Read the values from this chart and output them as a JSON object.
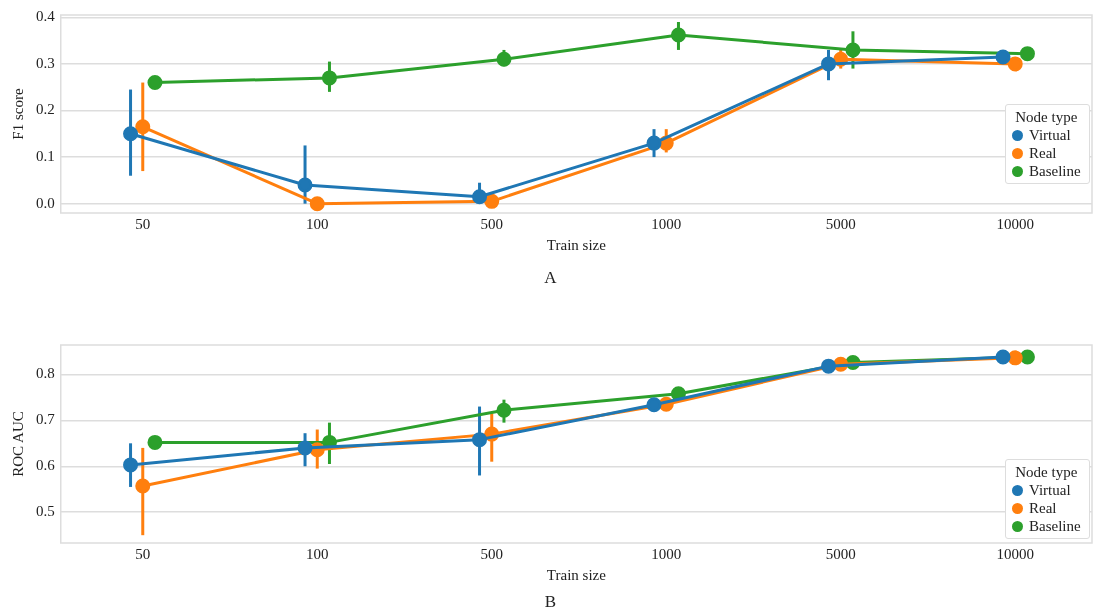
{
  "chart_data": [
    {
      "type": "line",
      "xlabel": "Train size",
      "ylabel": "F1 score",
      "categories": [
        "50",
        "100",
        "500",
        "1000",
        "5000",
        "10000"
      ],
      "ylim": [
        -0.02,
        0.405
      ],
      "yticks": [
        {
          "value": 0,
          "label": "0.0"
        },
        0.1,
        0.2,
        0.3,
        0.4
      ],
      "grid": "y",
      "legend": "right",
      "legend_title": "Node type",
      "marker": "circle",
      "annotations": [
        "A"
      ],
      "series": [
        {
          "name": "Virtual",
          "color": "#1f77b4",
          "values": [
            0.15,
            0.04,
            0.015,
            0.13,
            0.3,
            0.315
          ],
          "errors": [
            [
              0.06,
              0.245
            ],
            [
              0.0,
              0.125
            ],
            [
              0.0,
              0.045
            ],
            [
              0.1,
              0.16
            ],
            [
              0.265,
              0.33
            ],
            null
          ]
        },
        {
          "name": "Real",
          "color": "#ff7f0e",
          "values": [
            0.165,
            0.0,
            0.005,
            0.13,
            0.31,
            0.3
          ],
          "errors": [
            [
              0.07,
              0.26
            ],
            null,
            null,
            [
              0.11,
              0.16
            ],
            [
              0.29,
              0.33
            ],
            null
          ]
        },
        {
          "name": "Baseline",
          "color": "#2ca02c",
          "values": [
            0.26,
            0.27,
            0.31,
            0.362,
            0.33,
            0.322
          ],
          "errors": [
            [
              0.25,
              0.27
            ],
            [
              0.24,
              0.305
            ],
            [
              0.295,
              0.33
            ],
            [
              0.33,
              0.39
            ],
            [
              0.29,
              0.37
            ],
            [
              0.31,
              0.335
            ]
          ]
        }
      ]
    },
    {
      "type": "line",
      "xlabel": "Train size",
      "ylabel": "ROC AUC",
      "categories": [
        "50",
        "100",
        "500",
        "1000",
        "5000",
        "10000"
      ],
      "ylim": [
        0.433,
        0.864
      ],
      "yticks": [
        0.5,
        0.6,
        0.7,
        0.8
      ],
      "grid": "y",
      "legend": "bottom right",
      "legend_title": "Node type",
      "marker": "circle",
      "annotations": [
        "B"
      ],
      "series": [
        {
          "name": "Virtual",
          "color": "#1f77b4",
          "values": [
            0.603,
            0.64,
            0.658,
            0.734,
            0.818,
            0.838
          ],
          "errors": [
            [
              0.555,
              0.65
            ],
            [
              0.6,
              0.672
            ],
            [
              0.58,
              0.73
            ],
            null,
            null,
            null
          ]
        },
        {
          "name": "Real",
          "color": "#ff7f0e",
          "values": [
            0.557,
            0.636,
            0.67,
            0.735,
            0.822,
            0.836
          ],
          "errors": [
            [
              0.45,
              0.64
            ],
            [
              0.595,
              0.68
            ],
            [
              0.61,
              0.715
            ],
            null,
            null,
            null
          ]
        },
        {
          "name": "Baseline",
          "color": "#2ca02c",
          "values": [
            0.652,
            0.652,
            0.722,
            0.758,
            0.826,
            0.838
          ],
          "errors": [
            null,
            [
              0.605,
              0.695
            ],
            [
              0.695,
              0.745
            ],
            null,
            null,
            null
          ]
        }
      ]
    }
  ]
}
